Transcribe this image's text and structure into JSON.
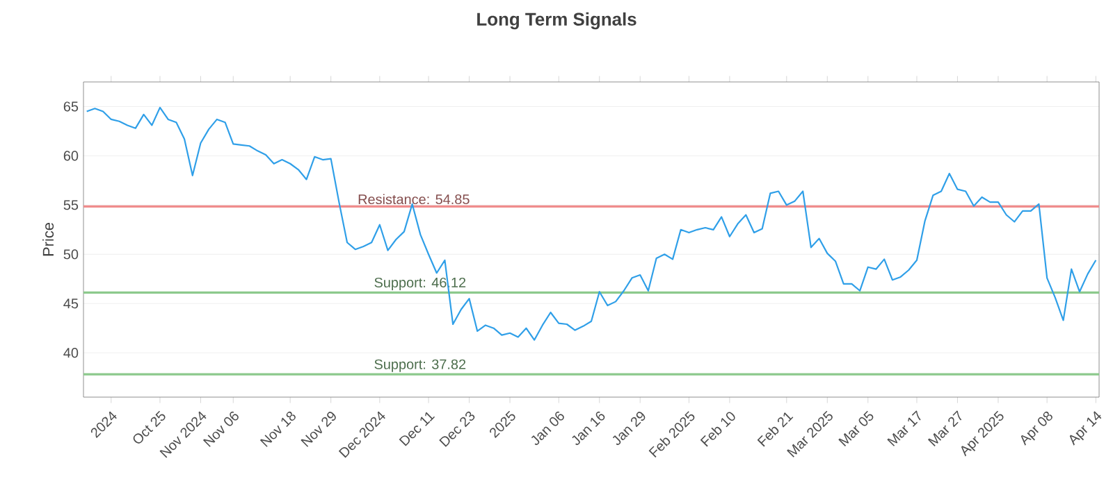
{
  "chart_data": {
    "type": "line",
    "title": "Long Term Signals",
    "ylabel": "Price",
    "categories": [
      null,
      null,
      null,
      "2024",
      null,
      null,
      null,
      null,
      null,
      "Oct 25",
      null,
      null,
      null,
      null,
      "Nov 2024",
      null,
      null,
      null,
      "Nov 06",
      null,
      null,
      null,
      null,
      null,
      null,
      "Nov 18",
      null,
      null,
      null,
      null,
      "Nov 29",
      null,
      null,
      null,
      null,
      null,
      "Dec 2024",
      null,
      null,
      null,
      null,
      null,
      "Dec 11",
      null,
      null,
      null,
      null,
      "Dec 23",
      null,
      null,
      null,
      null,
      "2025",
      null,
      null,
      null,
      null,
      null,
      "Jan 06",
      null,
      null,
      null,
      null,
      "Jan 16",
      null,
      null,
      null,
      null,
      "Jan 29",
      null,
      null,
      null,
      null,
      null,
      "Feb 2025",
      null,
      null,
      null,
      null,
      "Feb 10",
      null,
      null,
      null,
      null,
      null,
      null,
      "Feb 21",
      null,
      null,
      null,
      null,
      "Mar 2025",
      null,
      null,
      null,
      null,
      "Mar 05",
      null,
      null,
      null,
      null,
      null,
      "Mar 17",
      null,
      null,
      null,
      null,
      "Mar 27",
      null,
      null,
      null,
      null,
      "Apr 2025",
      null,
      null,
      null,
      null,
      null,
      "Apr 08",
      null,
      null,
      null,
      null,
      null,
      "Apr 14"
    ],
    "series": [
      {
        "color": "#2f9fe8",
        "values": [
          64.5,
          64.8,
          64.5,
          63.7,
          63.5,
          63.1,
          62.8,
          64.2,
          63.1,
          64.9,
          63.7,
          63.4,
          61.7,
          58.0,
          61.3,
          62.7,
          63.7,
          63.4,
          61.2,
          61.1,
          61.0,
          60.5,
          60.1,
          59.2,
          59.6,
          59.2,
          58.6,
          57.6,
          59.9,
          59.6,
          59.7,
          55.3,
          51.2,
          50.5,
          50.8,
          51.2,
          53.0,
          50.4,
          51.5,
          52.3,
          55.1,
          52.0,
          50.0,
          48.1,
          49.4,
          42.9,
          44.4,
          45.5,
          42.2,
          42.8,
          42.5,
          41.8,
          42.0,
          41.6,
          42.5,
          41.3,
          42.8,
          44.1,
          43.0,
          42.9,
          42.3,
          42.7,
          43.2,
          46.2,
          44.8,
          45.2,
          46.3,
          47.6,
          47.9,
          46.3,
          49.6,
          50.0,
          49.5,
          52.5,
          52.2,
          52.5,
          52.7,
          52.5,
          53.8,
          51.8,
          53.1,
          54.0,
          52.2,
          52.6,
          56.2,
          56.4,
          55.0,
          55.4,
          56.4,
          50.7,
          51.6,
          50.1,
          49.3,
          47.0,
          47.0,
          46.3,
          48.7,
          48.5,
          49.5,
          47.4,
          47.7,
          48.4,
          49.4,
          53.4,
          56.0,
          56.4,
          58.2,
          56.6,
          56.4,
          54.9,
          55.8,
          55.3,
          55.3,
          54.0,
          53.3,
          54.4,
          54.4,
          55.1,
          47.6,
          45.6,
          43.3,
          48.5,
          46.2,
          48.0,
          49.4
        ]
      }
    ],
    "ylim": [
      35.5,
      67.5
    ],
    "yticks": [
      40,
      45,
      50,
      55,
      60,
      65
    ],
    "grid": "y",
    "marker": "none",
    "line_style": "solid",
    "ref_lines": [
      {
        "axis": "y",
        "value": 54.85,
        "label": "Resistance: 54.85",
        "color": "#f08c8c"
      },
      {
        "axis": "y",
        "value": 46.12,
        "label": "Support: 46.12",
        "color": "#8cc98c"
      },
      {
        "axis": "y",
        "value": 37.82,
        "label": "Support: 37.82",
        "color": "#8cc98c"
      }
    ]
  }
}
